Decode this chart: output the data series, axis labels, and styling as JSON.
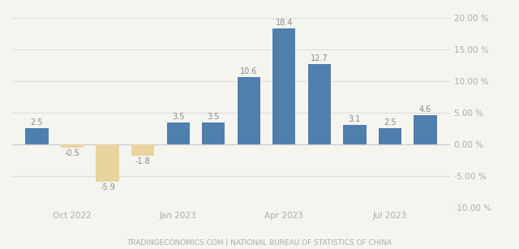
{
  "values": [
    2.5,
    -0.5,
    -5.9,
    -1.8,
    3.5,
    3.5,
    10.6,
    18.4,
    12.7,
    3.1,
    2.5,
    4.6
  ],
  "x_positions": [
    0,
    1,
    2,
    3,
    4,
    5,
    6,
    7,
    8,
    9,
    10,
    11
  ],
  "positive_color": "#4f7fad",
  "negative_color": "#e9d4a0",
  "bar_width": 0.65,
  "ylim": [
    -10,
    20
  ],
  "yticks": [
    -10,
    -5,
    0,
    5,
    10,
    15,
    20
  ],
  "ytick_labels": [
    "·10.00 %",
    "·5.00 %",
    "0.00 %",
    "5.00 %",
    "10.00 %",
    "15.00 %",
    "20.00 %"
  ],
  "xtick_positions": [
    1,
    4,
    7,
    10
  ],
  "xtick_labels": [
    "Oct 2022",
    "Jan 2023",
    "Apr 2023",
    "Jul 2023"
  ],
  "watermark": "TRADINGECONOMICS.COM | NATIONAL BUREAU OF STATISTICS OF CHINA",
  "bg_color": "#f5f5f0",
  "grid_color": "#dddddd",
  "bar_label_fontsize": 7,
  "bar_label_color": "#888888",
  "axis_label_color": "#aaaaaa",
  "watermark_color": "#aaaaaa",
  "watermark_fontsize": 6.5
}
